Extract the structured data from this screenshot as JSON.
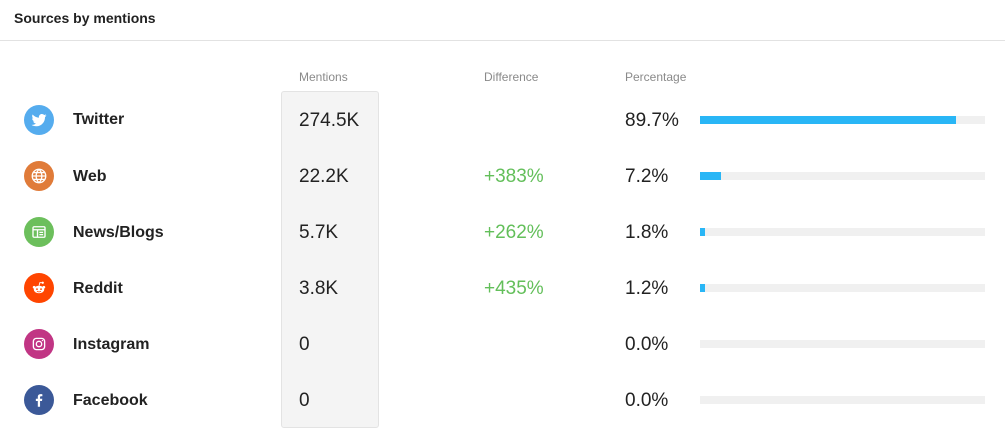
{
  "header": {
    "title": "Sources by mentions"
  },
  "columns": {
    "mentions": "Mentions",
    "difference": "Difference",
    "percentage": "Percentage"
  },
  "colors": {
    "difference": "#63bf5a",
    "bar": "#29b6f6",
    "track": "#f0f0f0"
  },
  "sources": [
    {
      "name": "Twitter",
      "icon": "twitter-icon",
      "icon_color": "#55acee",
      "mentions": "274.5K",
      "difference": "",
      "percentage": "89.7%",
      "share": 89.7
    },
    {
      "name": "Web",
      "icon": "globe-icon",
      "icon_color": "#e07b39",
      "mentions": "22.2K",
      "difference": "+383%",
      "percentage": "7.2%",
      "share": 7.2
    },
    {
      "name": "News/Blogs",
      "icon": "newspaper-icon",
      "icon_color": "#6cbf5c",
      "mentions": "5.7K",
      "difference": "+262%",
      "percentage": "1.8%",
      "share": 1.8
    },
    {
      "name": "Reddit",
      "icon": "reddit-icon",
      "icon_color": "#ff4500",
      "mentions": "3.8K",
      "difference": "+435%",
      "percentage": "1.2%",
      "share": 1.2
    },
    {
      "name": "Instagram",
      "icon": "instagram-icon",
      "icon_color": "#c13584",
      "mentions": "0",
      "difference": "",
      "percentage": "0.0%",
      "share": 0
    },
    {
      "name": "Facebook",
      "icon": "facebook-icon",
      "icon_color": "#3b5998",
      "mentions": "0",
      "difference": "",
      "percentage": "0.0%",
      "share": 0
    }
  ]
}
